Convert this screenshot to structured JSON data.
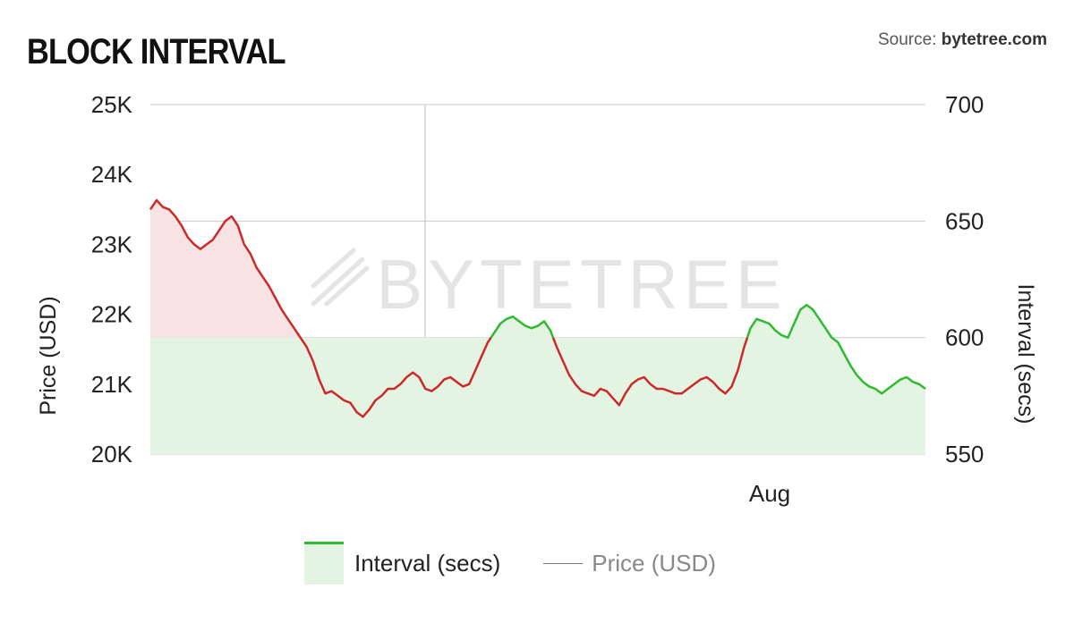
{
  "title": "BLOCK INTERVAL",
  "source": {
    "prefix": "Source:",
    "name": "bytetree.com"
  },
  "watermark": "BYTETREE",
  "legend": [
    {
      "label": "Interval (secs)",
      "color": "#2fbb2f"
    },
    {
      "label": "Price (USD)",
      "color": "#888888"
    }
  ],
  "chart_data": {
    "type": "area",
    "title": "BLOCK INTERVAL",
    "left_axis": {
      "label": "Price (USD)",
      "range": [
        20000,
        25000
      ],
      "ticks": [
        "20K",
        "21K",
        "22K",
        "23K",
        "24K",
        "25K"
      ]
    },
    "right_axis": {
      "label": "Interval (secs)",
      "range": [
        550,
        700
      ],
      "ticks": [
        "550",
        "600",
        "650",
        "700"
      ]
    },
    "x_ticks": [
      "Aug"
    ],
    "threshold": 600,
    "colors": {
      "above": "#cc2a2a",
      "above_fill": "#f8e3e3",
      "below": "#2fbb2f",
      "below_fill": "#e3f4e3",
      "grid": "#cccccc"
    },
    "grid": true,
    "series": [
      {
        "name": "Interval (secs)",
        "axis": "right",
        "values": [
          655,
          659,
          656,
          655,
          652,
          648,
          643,
          640,
          638,
          640,
          642,
          646,
          650,
          652,
          648,
          640,
          636,
          630,
          626,
          622,
          617,
          612,
          608,
          604,
          600,
          596,
          590,
          582,
          576,
          577,
          575,
          573,
          572,
          568,
          566,
          569,
          573,
          575,
          578,
          578,
          580,
          583,
          585,
          583,
          578,
          577,
          579,
          582,
          583,
          581,
          579,
          580,
          586,
          592,
          598,
          602,
          606,
          608,
          609,
          607,
          605,
          604,
          605,
          607,
          603,
          596,
          590,
          584,
          580,
          577,
          576,
          575,
          578,
          577,
          574,
          571,
          576,
          580,
          582,
          583,
          580,
          578,
          578,
          577,
          576,
          576,
          578,
          580,
          582,
          583,
          581,
          578,
          576,
          579,
          586,
          596,
          604,
          608,
          607,
          606,
          603,
          601,
          600,
          606,
          612,
          614,
          612,
          608,
          604,
          600,
          598,
          593,
          588,
          584,
          581,
          579,
          578,
          576,
          578,
          580,
          582,
          583,
          581,
          580,
          578
        ]
      }
    ]
  }
}
